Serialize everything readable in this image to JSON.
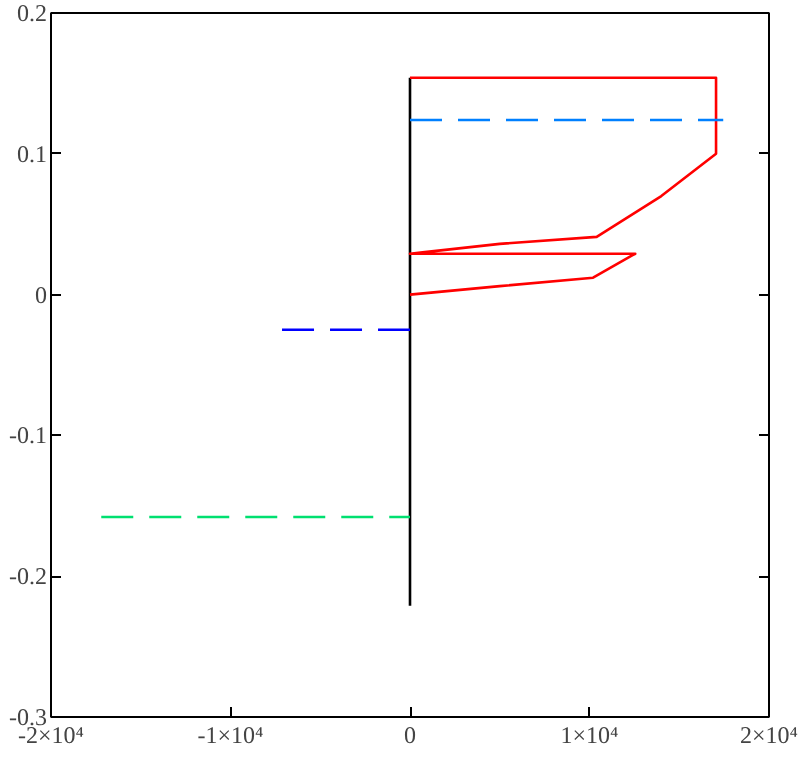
{
  "chart_data": {
    "type": "line",
    "xlim": [
      -20000,
      20000
    ],
    "xticks": [
      {
        "value": -20000,
        "label": "-2×10⁴"
      },
      {
        "value": -10000,
        "label": "-1×10⁴"
      },
      0,
      {
        "value": 10000,
        "label": "1×10⁴"
      },
      {
        "value": 20000,
        "label": "2×10⁴"
      }
    ],
    "ylim": [
      -0.3,
      0.2
    ],
    "yticks": [
      -0.3,
      -0.2,
      -0.1,
      0,
      0.1,
      0.2
    ],
    "series": [
      {
        "color": "#000000",
        "line_style": "solid",
        "x": [
          0,
          0
        ],
        "values": [
          -0.221,
          0.154
        ]
      },
      {
        "color": "#ff0000",
        "line_style": "solid",
        "x": [
          0,
          17050,
          17050,
          14000,
          10400,
          5000,
          700,
          0,
          0,
          12550,
          12400,
          10200,
          5000,
          0
        ],
        "values": [
          0.154,
          0.154,
          0.1,
          0.07,
          0.041,
          0.036,
          0.03,
          0.029,
          0.029,
          0.029,
          0.028,
          0.012,
          0.006,
          0
        ]
      },
      {
        "color": "#0080ff",
        "line_style": "dashed",
        "x": [
          0,
          17450
        ],
        "values": [
          0.124,
          0.124
        ]
      },
      {
        "color": "#0000ff",
        "line_style": "dashed",
        "x": [
          -7130,
          0
        ],
        "values": [
          -0.025,
          -0.025
        ]
      },
      {
        "color": "#00e070",
        "line_style": "dashed",
        "x": [
          -17200,
          0
        ],
        "values": [
          -0.158,
          -0.158
        ]
      }
    ]
  }
}
